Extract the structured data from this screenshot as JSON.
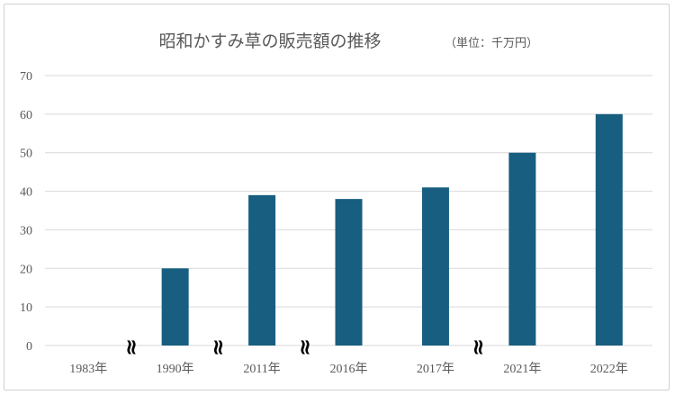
{
  "chart_data": {
    "type": "bar",
    "title": "昭和かすみ草の販売額の推移",
    "unit_label": "（単位：千万円）",
    "categories": [
      "1983年",
      "1990年",
      "2011年",
      "2016年",
      "2017年",
      "2021年",
      "2022年"
    ],
    "values": [
      0,
      20,
      39,
      38,
      41,
      50,
      60
    ],
    "ylim": [
      0,
      70
    ],
    "yticks": [
      "0",
      "10",
      "20",
      "30",
      "40",
      "50",
      "60",
      "70"
    ],
    "axis_breaks_after": [
      "1983年",
      "1990年",
      "2011年",
      "2017年"
    ],
    "axis_break_glyph": "≈",
    "grid": true,
    "colors": {
      "bar": "#175e80",
      "grid": "#d9d9d9",
      "text": "#595959"
    }
  }
}
